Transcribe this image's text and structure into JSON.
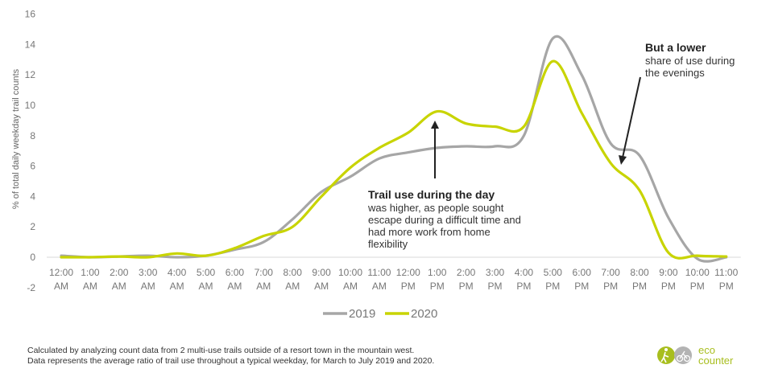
{
  "chart_data": {
    "type": "line",
    "ylabel": "% of total daily weekday trail counts",
    "ylim": [
      -2,
      16
    ],
    "yticks": [
      -2,
      0,
      2,
      4,
      6,
      8,
      10,
      12,
      14,
      16
    ],
    "categories": [
      [
        "12:00",
        "AM"
      ],
      [
        "1:00",
        "AM"
      ],
      [
        "2:00",
        "AM"
      ],
      [
        "3:00",
        "AM"
      ],
      [
        "4:00",
        "AM"
      ],
      [
        "5:00",
        "AM"
      ],
      [
        "6:00",
        "AM"
      ],
      [
        "7:00",
        "AM"
      ],
      [
        "8:00",
        "AM"
      ],
      [
        "9:00",
        "AM"
      ],
      [
        "10:00",
        "AM"
      ],
      [
        "11:00",
        "AM"
      ],
      [
        "12:00",
        "PM"
      ],
      [
        "1:00",
        "PM"
      ],
      [
        "2:00",
        "PM"
      ],
      [
        "3:00",
        "PM"
      ],
      [
        "4:00",
        "PM"
      ],
      [
        "5:00",
        "PM"
      ],
      [
        "6:00",
        "PM"
      ],
      [
        "7:00",
        "PM"
      ],
      [
        "8:00",
        "PM"
      ],
      [
        "9:00",
        "PM"
      ],
      [
        "10:00",
        "PM"
      ],
      [
        "11:00",
        "PM"
      ]
    ],
    "series": [
      {
        "name": "2019",
        "color": "#a6a6a6",
        "values": [
          0.1,
          0.0,
          0.05,
          0.1,
          0.0,
          0.1,
          0.5,
          1.0,
          2.5,
          4.3,
          5.3,
          6.5,
          6.9,
          7.2,
          7.3,
          7.3,
          8.0,
          14.4,
          12.0,
          7.5,
          6.7,
          2.6,
          -0.1,
          0.0
        ]
      },
      {
        "name": "2020",
        "color": "#c8d400",
        "values": [
          0.0,
          0.0,
          0.05,
          0.0,
          0.25,
          0.1,
          0.6,
          1.4,
          2.0,
          4.0,
          5.9,
          7.2,
          8.2,
          9.6,
          8.8,
          8.6,
          8.6,
          12.9,
          9.5,
          6.2,
          4.4,
          0.3,
          0.1,
          0.05
        ]
      }
    ],
    "legend": "bottom",
    "grid": false
  },
  "annotations": {
    "day": {
      "title": "Trail use during the day",
      "lines": [
        "was higher, as people sought",
        "escape during a difficult time and",
        "had more work from home",
        "flexibility"
      ]
    },
    "evening": {
      "title": "But a lower",
      "lines": [
        "share of use  during",
        "the evenings"
      ]
    }
  },
  "footnote": [
    "Calculated by analyzing count data from 2 multi-use trails outside of a resort town in the mountain west.",
    "Data represents the average ratio of trail use throughout a typical weekday, for March to July 2019 and 2020."
  ],
  "logo": {
    "line1": "eco",
    "line2": "counter",
    "color": "#a8be1e",
    "icon": "hiker-and-cyclist-icon"
  }
}
